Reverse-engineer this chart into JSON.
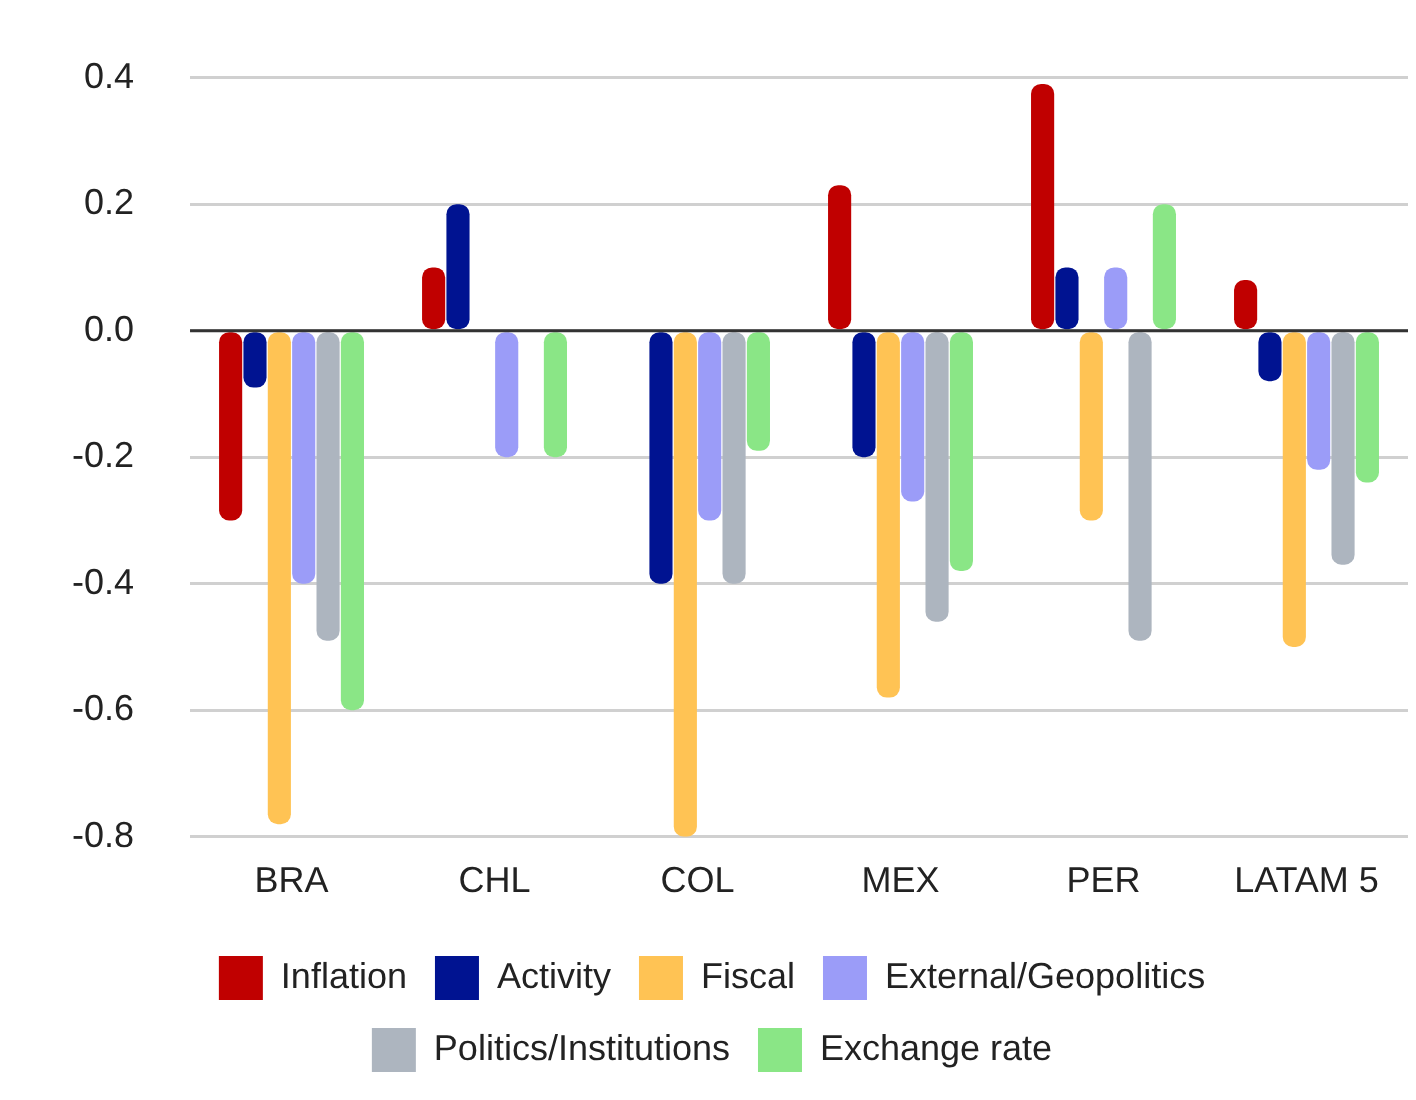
{
  "chart_data": {
    "type": "bar",
    "categories": [
      "BRA",
      "CHL",
      "COL",
      "MEX",
      "PER",
      "LATAM 5"
    ],
    "series": [
      {
        "name": "Inflation",
        "color": "#c00000",
        "values": [
          -0.3,
          0.1,
          0.0,
          0.23,
          0.39,
          0.08
        ]
      },
      {
        "name": "Activity",
        "color": "#001391",
        "values": [
          -0.09,
          0.2,
          -0.4,
          -0.2,
          0.1,
          -0.08
        ]
      },
      {
        "name": "Fiscal",
        "color": "#ffc354",
        "values": [
          -0.78,
          0.0,
          -0.8,
          -0.58,
          -0.3,
          -0.5
        ]
      },
      {
        "name": "External/Geopolitics",
        "color": "#9b9cf8",
        "values": [
          -0.4,
          -0.2,
          -0.3,
          -0.27,
          0.1,
          -0.22
        ]
      },
      {
        "name": "Politics/Institutions",
        "color": "#adb5bf",
        "values": [
          -0.49,
          0.0,
          -0.4,
          -0.46,
          -0.49,
          -0.37
        ]
      },
      {
        "name": "Exchange rate",
        "color": "#8ae686",
        "values": [
          -0.6,
          -0.2,
          -0.19,
          -0.38,
          0.2,
          -0.24
        ]
      }
    ],
    "ylim": [
      -0.8,
      0.4
    ],
    "yticks": [
      {
        "value": -0.8,
        "label": "-0.8"
      },
      {
        "value": -0.6,
        "label": "-0.6"
      },
      {
        "value": -0.4,
        "label": "-0.4"
      },
      {
        "value": -0.2,
        "label": "-0.2"
      },
      {
        "value": 0,
        "label": "0.0"
      },
      {
        "value": 0.2,
        "label": "0.2"
      },
      {
        "value": 0.4,
        "label": "0.4"
      }
    ],
    "grid": "y",
    "legend": "bottom"
  }
}
